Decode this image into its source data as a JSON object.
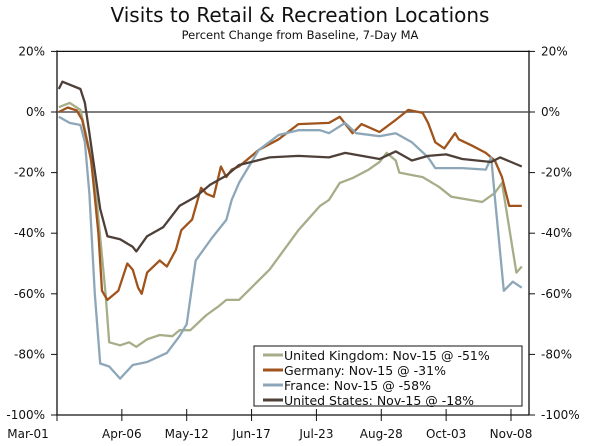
{
  "chart_data": {
    "type": "line",
    "title": "Visits to Retail & Recreation Locations",
    "subtitle": "Percent Change from Baseline, 7-Day MA",
    "xlabel": "",
    "ylabel": "",
    "x_unit": "days since Mar-01",
    "xlim": [
      0,
      262
    ],
    "ylim": [
      -100,
      20
    ],
    "y_ticks": [
      20,
      0,
      -20,
      -40,
      -60,
      -80,
      -100
    ],
    "y_tick_labels": [
      "20%",
      "0%",
      "-20%",
      "-40%",
      "-60%",
      "-80%",
      "-100%"
    ],
    "x_ticks": [
      0,
      36,
      72,
      108,
      144,
      180,
      216,
      252
    ],
    "x_tick_labels": [
      "Mar-01",
      "Apr-06",
      "May-12",
      "Jun-17",
      "Jul-23",
      "Aug-28",
      "Oct-03",
      "Nov-08"
    ],
    "zero_line": true,
    "grid": false,
    "legend_position": "bottom-right",
    "series": [
      {
        "name": "United Kingdom",
        "legend": "United Kingdom: Nov-15 @ -51%",
        "color": "#a5ae88",
        "x": [
          1,
          7,
          13,
          18,
          22,
          27,
          29,
          35,
          40,
          44,
          50,
          57,
          64,
          68,
          74,
          83,
          90,
          94,
          101,
          118,
          134,
          146,
          151,
          157,
          164,
          173,
          179,
          183,
          188,
          190,
          203,
          212,
          219,
          236,
          243,
          247,
          255,
          258
        ],
        "y": [
          1.6,
          3,
          0.7,
          -12.5,
          -29,
          -60,
          -76,
          -77,
          -76,
          -77.5,
          -75,
          -73.6,
          -74,
          -72,
          -72,
          -67,
          -64,
          -62,
          -62,
          -52,
          -39,
          -31,
          -29,
          -23.4,
          -21.8,
          -19,
          -16.5,
          -13.5,
          -16,
          -20,
          -21.5,
          -24.7,
          -28,
          -29.7,
          -26.7,
          -23.4,
          -53,
          -51
        ]
      },
      {
        "name": "Germany",
        "legend": "Germany: Nov-15 @ -31%",
        "color": "#a0541c",
        "x": [
          1,
          6,
          11,
          14,
          19,
          23,
          25,
          28,
          34,
          39,
          42,
          45,
          47,
          50,
          57,
          61,
          66,
          69,
          75,
          80,
          83,
          87,
          91,
          94,
          97,
          101,
          112,
          123,
          134,
          151,
          157,
          164,
          169,
          179,
          188,
          195,
          203,
          206,
          210,
          215,
          221,
          223,
          230,
          238,
          243,
          247,
          251,
          258
        ],
        "y": [
          0,
          1.5,
          0.5,
          -2.6,
          -16,
          -40,
          -59,
          -62,
          -59,
          -50,
          -52,
          -58,
          -60,
          -53,
          -49,
          -51,
          -45.5,
          -39,
          -35.5,
          -25,
          -27,
          -28,
          -18,
          -21.5,
          -19,
          -18,
          -12.5,
          -9,
          -4,
          -3.6,
          -1.6,
          -7,
          -4,
          -6.6,
          -2.6,
          0.7,
          -0.3,
          -3.6,
          -10,
          -12,
          -7,
          -9,
          -11,
          -13.5,
          -16,
          -21.5,
          -31,
          -31
        ]
      },
      {
        "name": "France",
        "legend": "France: Nov-15 @ -58%",
        "color": "#8ea7b8",
        "x": [
          1,
          7,
          13,
          15.5,
          18,
          21,
          24,
          29,
          35,
          42,
          50,
          61,
          68,
          72,
          77,
          86,
          94,
          97,
          101,
          112,
          123,
          134,
          146,
          151,
          160,
          166,
          179,
          188,
          197,
          206,
          210,
          225,
          238,
          241,
          243,
          248,
          253,
          258
        ],
        "y": [
          -1.6,
          -3.6,
          -4.3,
          -10,
          -27,
          -60,
          -83,
          -84,
          -88,
          -83.5,
          -82.5,
          -79.5,
          -74,
          -70,
          -49,
          -41.6,
          -35.6,
          -29,
          -23.4,
          -12.5,
          -7.6,
          -6,
          -6,
          -7,
          -3.6,
          -7,
          -8,
          -7,
          -10,
          -15,
          -18.5,
          -18.5,
          -19,
          -15,
          -28,
          -59,
          -56,
          -58
        ]
      },
      {
        "name": "United States",
        "legend": "United States: Nov-15 @ -18%",
        "color": "#4e4038",
        "x": [
          1,
          3,
          13,
          15.5,
          18,
          24,
          28,
          35,
          42,
          44,
          50,
          59,
          68,
          77,
          85,
          94,
          101,
          118,
          134,
          151,
          160,
          179,
          188,
          197,
          206,
          216,
          225,
          241,
          246,
          258
        ],
        "y": [
          7.6,
          10,
          7.6,
          3,
          -7,
          -32,
          -41,
          -42,
          -44.5,
          -46,
          -41,
          -38,
          -31,
          -28,
          -24,
          -21,
          -17.5,
          -15,
          -14.5,
          -15,
          -13.5,
          -15.5,
          -13,
          -16,
          -14.5,
          -14,
          -15.5,
          -16.5,
          -15,
          -18
        ]
      }
    ]
  }
}
